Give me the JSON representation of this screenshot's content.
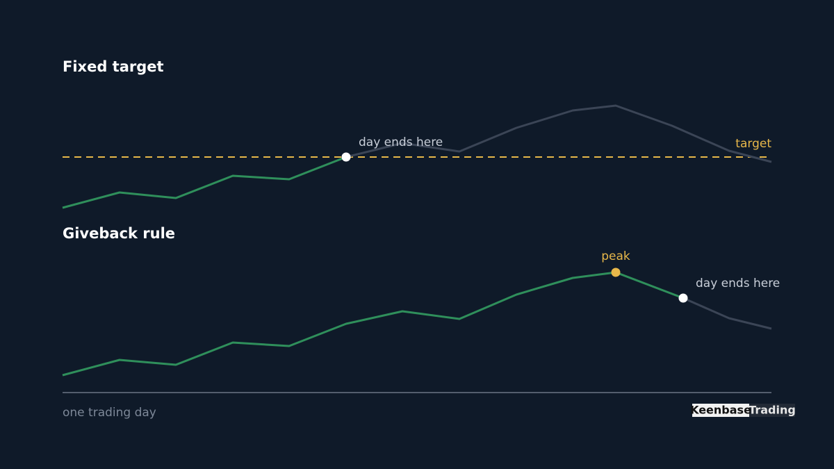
{
  "chart_data": [
    {
      "type": "line",
      "title": "Fixed target",
      "x": [
        0,
        82,
        163,
        245,
        326,
        408,
        489,
        571,
        653,
        734,
        796,
        877,
        959,
        1020
      ],
      "values": [
        1,
        23,
        15,
        47,
        42,
        74,
        94,
        82,
        116,
        141,
        148,
        119,
        83,
        67
      ],
      "color": "#2f8f5b",
      "rest_color": "#3b4556",
      "highlight_until": 5,
      "xlim": [
        0,
        1020
      ],
      "ylim": [
        0,
        160
      ],
      "target": {
        "label": "target",
        "value": 74,
        "color": "#e8b84a"
      },
      "annotations": [
        {
          "text": "day ends here",
          "index": 5,
          "color": "#ffffff",
          "text_color": "#c8ced8"
        }
      ]
    },
    {
      "type": "line",
      "title": "Giveback rule",
      "x": [
        0,
        82,
        163,
        245,
        326,
        408,
        489,
        571,
        653,
        734,
        796,
        893,
        959,
        1020
      ],
      "values": [
        0,
        22,
        15,
        47,
        42,
        74,
        92,
        81,
        116,
        140,
        148,
        111,
        82,
        67
      ],
      "color": "#2f8f5b",
      "rest_color": "#3b4556",
      "highlight_until": 11,
      "xlim": [
        0,
        1020
      ],
      "ylim": [
        0,
        160
      ],
      "xlabel": "one trading day",
      "annotations": [
        {
          "text": "peak",
          "index": 10,
          "color": "#e8b84a",
          "text_color": "#e8b84a"
        },
        {
          "text": "day ends here",
          "index": 11,
          "color": "#ffffff",
          "text_color": "#c8ced8"
        }
      ]
    }
  ],
  "brand": [
    "Keenbase",
    "Trading"
  ]
}
